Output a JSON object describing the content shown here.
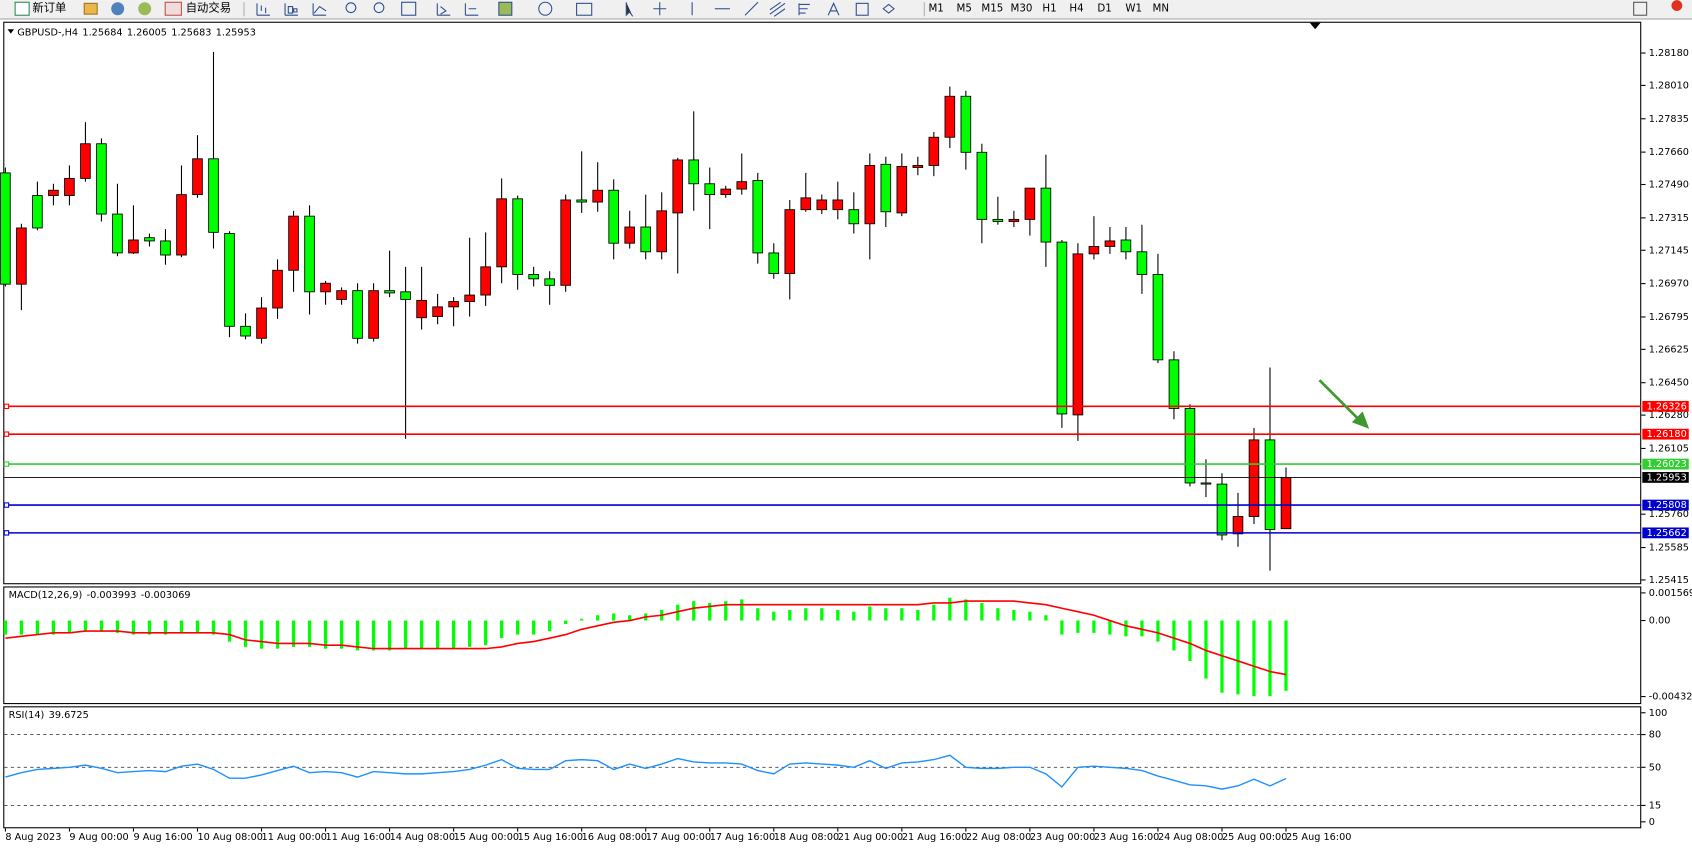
{
  "toolbar": {
    "buttons": [
      "新订单",
      "自动交易"
    ],
    "timeframes": [
      "M1",
      "M5",
      "M15",
      "M30",
      "H1",
      "H4",
      "D1",
      "W1",
      "MN"
    ]
  },
  "chart_data": [
    {
      "type": "candlestick",
      "symbol": "GBPUSD-,H4",
      "up_color": "#ff0000",
      "down_color": "#00ff00",
      "categories": [
        "8 Aug 2023",
        null,
        null,
        null,
        "9 Aug 00:00",
        null,
        null,
        null,
        "9 Aug 16:00",
        null,
        null,
        null,
        "10 Aug 08:00",
        null,
        null,
        null,
        "11 Aug 00:00",
        null,
        null,
        null,
        "11 Aug 16:00",
        null,
        null,
        null,
        "14 Aug 08:00",
        null,
        null,
        null,
        "15 Aug 00:00",
        null,
        null,
        null,
        "15 Aug 16:00",
        null,
        null,
        null,
        "16 Aug 08:00",
        null,
        null,
        null,
        "17 Aug 00:00",
        null,
        null,
        null,
        "17 Aug 16:00",
        null,
        null,
        null,
        "18 Aug 08:00",
        null,
        null,
        null,
        "21 Aug 00:00",
        null,
        null,
        null,
        "21 Aug 16:00",
        null,
        null,
        null,
        "22 Aug 08:00",
        null,
        null,
        null,
        "23 Aug 00:00",
        null,
        null,
        null,
        "23 Aug 16:00",
        null,
        null,
        null,
        "24 Aug 08:00",
        null,
        null,
        null,
        "25 Aug 00:00",
        null,
        null,
        null,
        "25 Aug 16:00"
      ],
      "ohlc": [
        [
          1.27551,
          1.27579,
          1.26955,
          1.26967
        ],
        [
          1.26967,
          1.27284,
          1.26831,
          1.27262
        ],
        [
          1.27432,
          1.27505,
          1.2725,
          1.27262
        ],
        [
          1.27432,
          1.27494,
          1.27381,
          1.2746
        ],
        [
          1.27432,
          1.2759,
          1.27381,
          1.27522
        ],
        [
          1.27522,
          1.27817,
          1.27505,
          1.27704
        ],
        [
          1.27704,
          1.27732,
          1.27296,
          1.27335
        ],
        [
          1.27335,
          1.27494,
          1.27114,
          1.27131
        ],
        [
          1.27131,
          1.27381,
          1.27126,
          1.27199
        ],
        [
          1.27211,
          1.27233,
          1.27165,
          1.27194
        ],
        [
          1.27194,
          1.27256,
          1.27069,
          1.2712
        ],
        [
          1.2712,
          1.2759,
          1.27109,
          1.27437
        ],
        [
          1.27437,
          1.27749,
          1.2742,
          1.27625
        ],
        [
          1.27625,
          1.28186,
          1.27154,
          1.27239
        ],
        [
          1.27233,
          1.27245,
          1.26689,
          1.26746
        ],
        [
          1.26746,
          1.26814,
          1.26678,
          1.26695
        ],
        [
          1.26683,
          1.26899,
          1.26655,
          1.26842
        ],
        [
          1.26842,
          1.27097,
          1.26785,
          1.2704
        ],
        [
          1.2704,
          1.27352,
          1.26927,
          1.27324
        ],
        [
          1.27324,
          1.27381,
          1.26808,
          1.26927
        ],
        [
          1.26927,
          1.26984,
          1.26859,
          1.26972
        ],
        [
          1.26887,
          1.2695,
          1.26859,
          1.26933
        ],
        [
          1.26933,
          1.26972,
          1.26655,
          1.26683
        ],
        [
          1.26683,
          1.26972,
          1.26666,
          1.26933
        ],
        [
          1.26933,
          1.27143,
          1.26899,
          1.26921
        ],
        [
          1.26927,
          1.27058,
          1.26156,
          1.26887
        ],
        [
          1.26791,
          1.27058,
          1.26729,
          1.26882
        ],
        [
          1.26797,
          1.26916,
          1.26757,
          1.26848
        ],
        [
          1.26848,
          1.26899,
          1.26746,
          1.26876
        ],
        [
          1.26876,
          1.27211,
          1.26797,
          1.2691
        ],
        [
          1.2691,
          1.27239,
          1.26853,
          1.27058
        ],
        [
          1.27058,
          1.27522,
          1.26972,
          1.27415
        ],
        [
          1.27415,
          1.27432,
          1.26938,
          1.27018
        ],
        [
          1.27018,
          1.27058,
          1.26955,
          1.26995
        ],
        [
          1.26995,
          1.27035,
          1.26859,
          1.26961
        ],
        [
          1.26961,
          1.27437,
          1.26927,
          1.27409
        ],
        [
          1.27409,
          1.27664,
          1.27341,
          1.27398
        ],
        [
          1.27398,
          1.27607,
          1.27347,
          1.2746
        ],
        [
          1.2746,
          1.27517,
          1.27097,
          1.27182
        ],
        [
          1.27182,
          1.27352,
          1.27154,
          1.27267
        ],
        [
          1.27267,
          1.27437,
          1.27097,
          1.27137
        ],
        [
          1.27137,
          1.27449,
          1.27097,
          1.27352
        ],
        [
          1.27341,
          1.2763,
          1.27023,
          1.27619
        ],
        [
          1.27619,
          1.27874,
          1.27352,
          1.27494
        ],
        [
          1.27494,
          1.27579,
          1.27256,
          1.27437
        ],
        [
          1.27437,
          1.27483,
          1.2742,
          1.27466
        ],
        [
          1.27466,
          1.27653,
          1.27437,
          1.27505
        ],
        [
          1.27511,
          1.27551,
          1.27075,
          1.27131
        ],
        [
          1.27131,
          1.27182,
          1.26995,
          1.27023
        ],
        [
          1.27023,
          1.27409,
          1.26887,
          1.27358
        ],
        [
          1.27358,
          1.27551,
          1.27347,
          1.2742
        ],
        [
          1.27358,
          1.27437,
          1.27335,
          1.27409
        ],
        [
          1.27358,
          1.27505,
          1.27307,
          1.27409
        ],
        [
          1.27358,
          1.27449,
          1.27233,
          1.27284
        ],
        [
          1.27284,
          1.27653,
          1.27097,
          1.2759
        ],
        [
          1.27596,
          1.27636,
          1.27267,
          1.27347
        ],
        [
          1.27341,
          1.27653,
          1.27324,
          1.27585
        ],
        [
          1.27579,
          1.27636,
          1.27539,
          1.2759
        ],
        [
          1.2759,
          1.27766,
          1.27534,
          1.27738
        ],
        [
          1.27738,
          1.28004,
          1.27681,
          1.27953
        ],
        [
          1.27953,
          1.27982,
          1.27568,
          1.27659
        ],
        [
          1.27659,
          1.27704,
          1.27182,
          1.27307
        ],
        [
          1.27307,
          1.27426,
          1.27279,
          1.27296
        ],
        [
          1.27296,
          1.27352,
          1.27267,
          1.27307
        ],
        [
          1.27307,
          1.27471,
          1.27222,
          1.27471
        ],
        [
          1.27471,
          1.27647,
          1.27058,
          1.27188
        ],
        [
          1.27188,
          1.27199,
          1.26213,
          1.26286
        ],
        [
          1.26281,
          1.27182,
          1.26145,
          1.27126
        ],
        [
          1.27126,
          1.27324,
          1.27097,
          1.27165
        ],
        [
          1.27165,
          1.27267,
          1.27126,
          1.27194
        ],
        [
          1.27199,
          1.27267,
          1.27097,
          1.27137
        ],
        [
          1.27137,
          1.27279,
          1.26916,
          1.27018
        ],
        [
          1.27018,
          1.27126,
          1.26553,
          1.2657
        ],
        [
          1.2657,
          1.26615,
          1.26258,
          1.26315
        ],
        [
          1.26315,
          1.26337,
          1.25906,
          1.25924
        ],
        [
          1.25924,
          1.26048,
          1.2585,
          1.25918
        ],
        [
          1.25918,
          1.25975,
          1.25623,
          1.25651
        ],
        [
          1.25657,
          1.25872,
          1.25589,
          1.25748
        ],
        [
          1.25748,
          1.26213,
          1.25708,
          1.2615
        ],
        [
          1.2615,
          1.2653,
          1.25464,
          1.2568
        ],
        [
          1.25684,
          1.26005,
          1.25683,
          1.25953
        ]
      ],
      "ylim": [
        1.25398,
        1.28333
      ],
      "yticks": [
        {
          "value": 1.2818,
          "label": "1.28180"
        },
        {
          "value": 1.2801,
          "label": "1.28010"
        },
        {
          "value": 1.27835,
          "label": "1.27835"
        },
        {
          "value": 1.2766,
          "label": "1.27660"
        },
        {
          "value": 1.2749,
          "label": "1.27490"
        },
        {
          "value": 1.27315,
          "label": "1.27315"
        },
        {
          "value": 1.27145,
          "label": "1.27145"
        },
        {
          "value": 1.2697,
          "label": "1.26970"
        },
        {
          "value": 1.26795,
          "label": "1.26795"
        },
        {
          "value": 1.26625,
          "label": "1.26625"
        },
        {
          "value": 1.2645,
          "label": "1.26450"
        },
        {
          "value": 1.2628,
          "label": "1.26280"
        },
        {
          "value": 1.26105,
          "label": "1.26105"
        },
        {
          "value": 1.2576,
          "label": "1.25760"
        },
        {
          "value": 1.25585,
          "label": "1.25585"
        },
        {
          "value": 1.25415,
          "label": "1.25415"
        }
      ],
      "hlines": [
        {
          "value": 1.26326,
          "label": "1.26326",
          "color": "#ff0000"
        },
        {
          "value": 1.2618,
          "label": "1.26180",
          "color": "#ff0000"
        },
        {
          "value": 1.26023,
          "label": "1.26023",
          "color": "#32cd32"
        },
        {
          "value": 1.25808,
          "label": "1.25808",
          "color": "#0000cd"
        },
        {
          "value": 1.25662,
          "label": "1.25662",
          "color": "#0000cd"
        }
      ]
    },
    {
      "type": "macd",
      "title": "MACD(12,26,9)",
      "series": [
        {
          "style": "histogram",
          "color": "#00ff00",
          "values": [
            -0.0008,
            -0.0008,
            -0.0008,
            -0.0008,
            -0.0007,
            -0.0006,
            -0.0006,
            -0.0007,
            -0.0008,
            -0.0008,
            -0.0008,
            -0.0007,
            -0.0007,
            -0.0008,
            -0.0012,
            -0.0015,
            -0.0016,
            -0.0016,
            -0.0015,
            -0.0015,
            -0.0016,
            -0.0016,
            -0.0017,
            -0.0017,
            -0.0017,
            -0.0016,
            -0.0016,
            -0.0016,
            -0.0016,
            -0.0015,
            -0.0014,
            -0.001,
            -0.0008,
            -0.0008,
            -0.0006,
            -0.0002,
            0.0001,
            0.0003,
            0.0004,
            0.0003,
            0.0004,
            0.0006,
            0.0009,
            0.0011,
            0.001,
            0.0011,
            0.0012,
            0.0007,
            0.0005,
            0.0006,
            0.0007,
            0.0007,
            0.0006,
            0.0005,
            0.0008,
            0.0007,
            0.0007,
            0.0006,
            0.0009,
            0.0013,
            0.0012,
            0.001,
            0.0007,
            0.0006,
            0.0005,
            0.0003,
            -0.0008,
            -0.0007,
            -0.0007,
            -0.0008,
            -0.0009,
            -0.0009,
            -0.0012,
            -0.0017,
            -0.0023,
            -0.0033,
            -0.0041,
            -0.0042,
            -0.0043,
            -0.0043,
            -0.003993
          ]
        },
        {
          "style": "line",
          "color": "#ff0000",
          "values": [
            -0.001,
            -0.0009,
            -0.0008,
            -0.0007,
            -0.0007,
            -0.0006,
            -0.0006,
            -0.0006,
            -0.0007,
            -0.0007,
            -0.0007,
            -0.0007,
            -0.0007,
            -0.0007,
            -0.0008,
            -0.0011,
            -0.0012,
            -0.0013,
            -0.0013,
            -0.0013,
            -0.0014,
            -0.0014,
            -0.0015,
            -0.0016,
            -0.0016,
            -0.0016,
            -0.0016,
            -0.0016,
            -0.0016,
            -0.0016,
            -0.0016,
            -0.0015,
            -0.0013,
            -0.0012,
            -0.001,
            -0.0008,
            -0.0005,
            -0.0003,
            -0.0001,
            0.0,
            0.0002,
            0.0003,
            0.0005,
            0.0007,
            0.0008,
            0.0009,
            0.0009,
            0.0009,
            0.0009,
            0.0009,
            0.0009,
            0.0009,
            0.0009,
            0.0009,
            0.0009,
            0.0009,
            0.0009,
            0.0009,
            0.001,
            0.001,
            0.0011,
            0.0011,
            0.0011,
            0.0011,
            0.001,
            0.0009,
            0.0007,
            0.0005,
            0.0003,
            0.0,
            -0.0003,
            -0.0005,
            -0.0007,
            -0.001,
            -0.0013,
            -0.0017,
            -0.002,
            -0.0023,
            -0.0026,
            -0.0029,
            -0.003069
          ]
        }
      ],
      "ylim": [
        -0.004322,
        0.001569
      ],
      "yticks": [
        0.001569,
        {
          "value": 0,
          "label": "0.00"
        },
        -0.004322
      ]
    },
    {
      "type": "line",
      "title": "RSI(14)",
      "series": [
        {
          "color": "#1e90ff",
          "values": [
            41,
            45,
            48,
            49,
            50,
            52,
            49,
            45,
            46,
            47,
            46,
            51,
            53,
            48,
            40,
            40,
            43,
            47,
            51,
            45,
            46,
            45,
            41,
            46,
            45,
            44,
            44,
            45,
            46,
            48,
            52,
            57,
            49,
            48,
            48,
            56,
            57,
            56,
            48,
            53,
            49,
            53,
            58,
            55,
            54,
            54,
            53,
            47,
            44,
            53,
            54,
            53,
            52,
            50,
            56,
            49,
            54,
            55,
            57,
            61,
            50,
            49,
            49,
            50,
            50,
            44,
            32,
            50,
            51,
            50,
            49,
            47,
            42,
            38,
            34,
            33,
            30,
            33,
            39,
            33,
            39.6725
          ]
        }
      ],
      "ylim": [
        0,
        100
      ],
      "yticks": [
        100,
        80,
        50,
        15,
        0
      ]
    }
  ]
}
